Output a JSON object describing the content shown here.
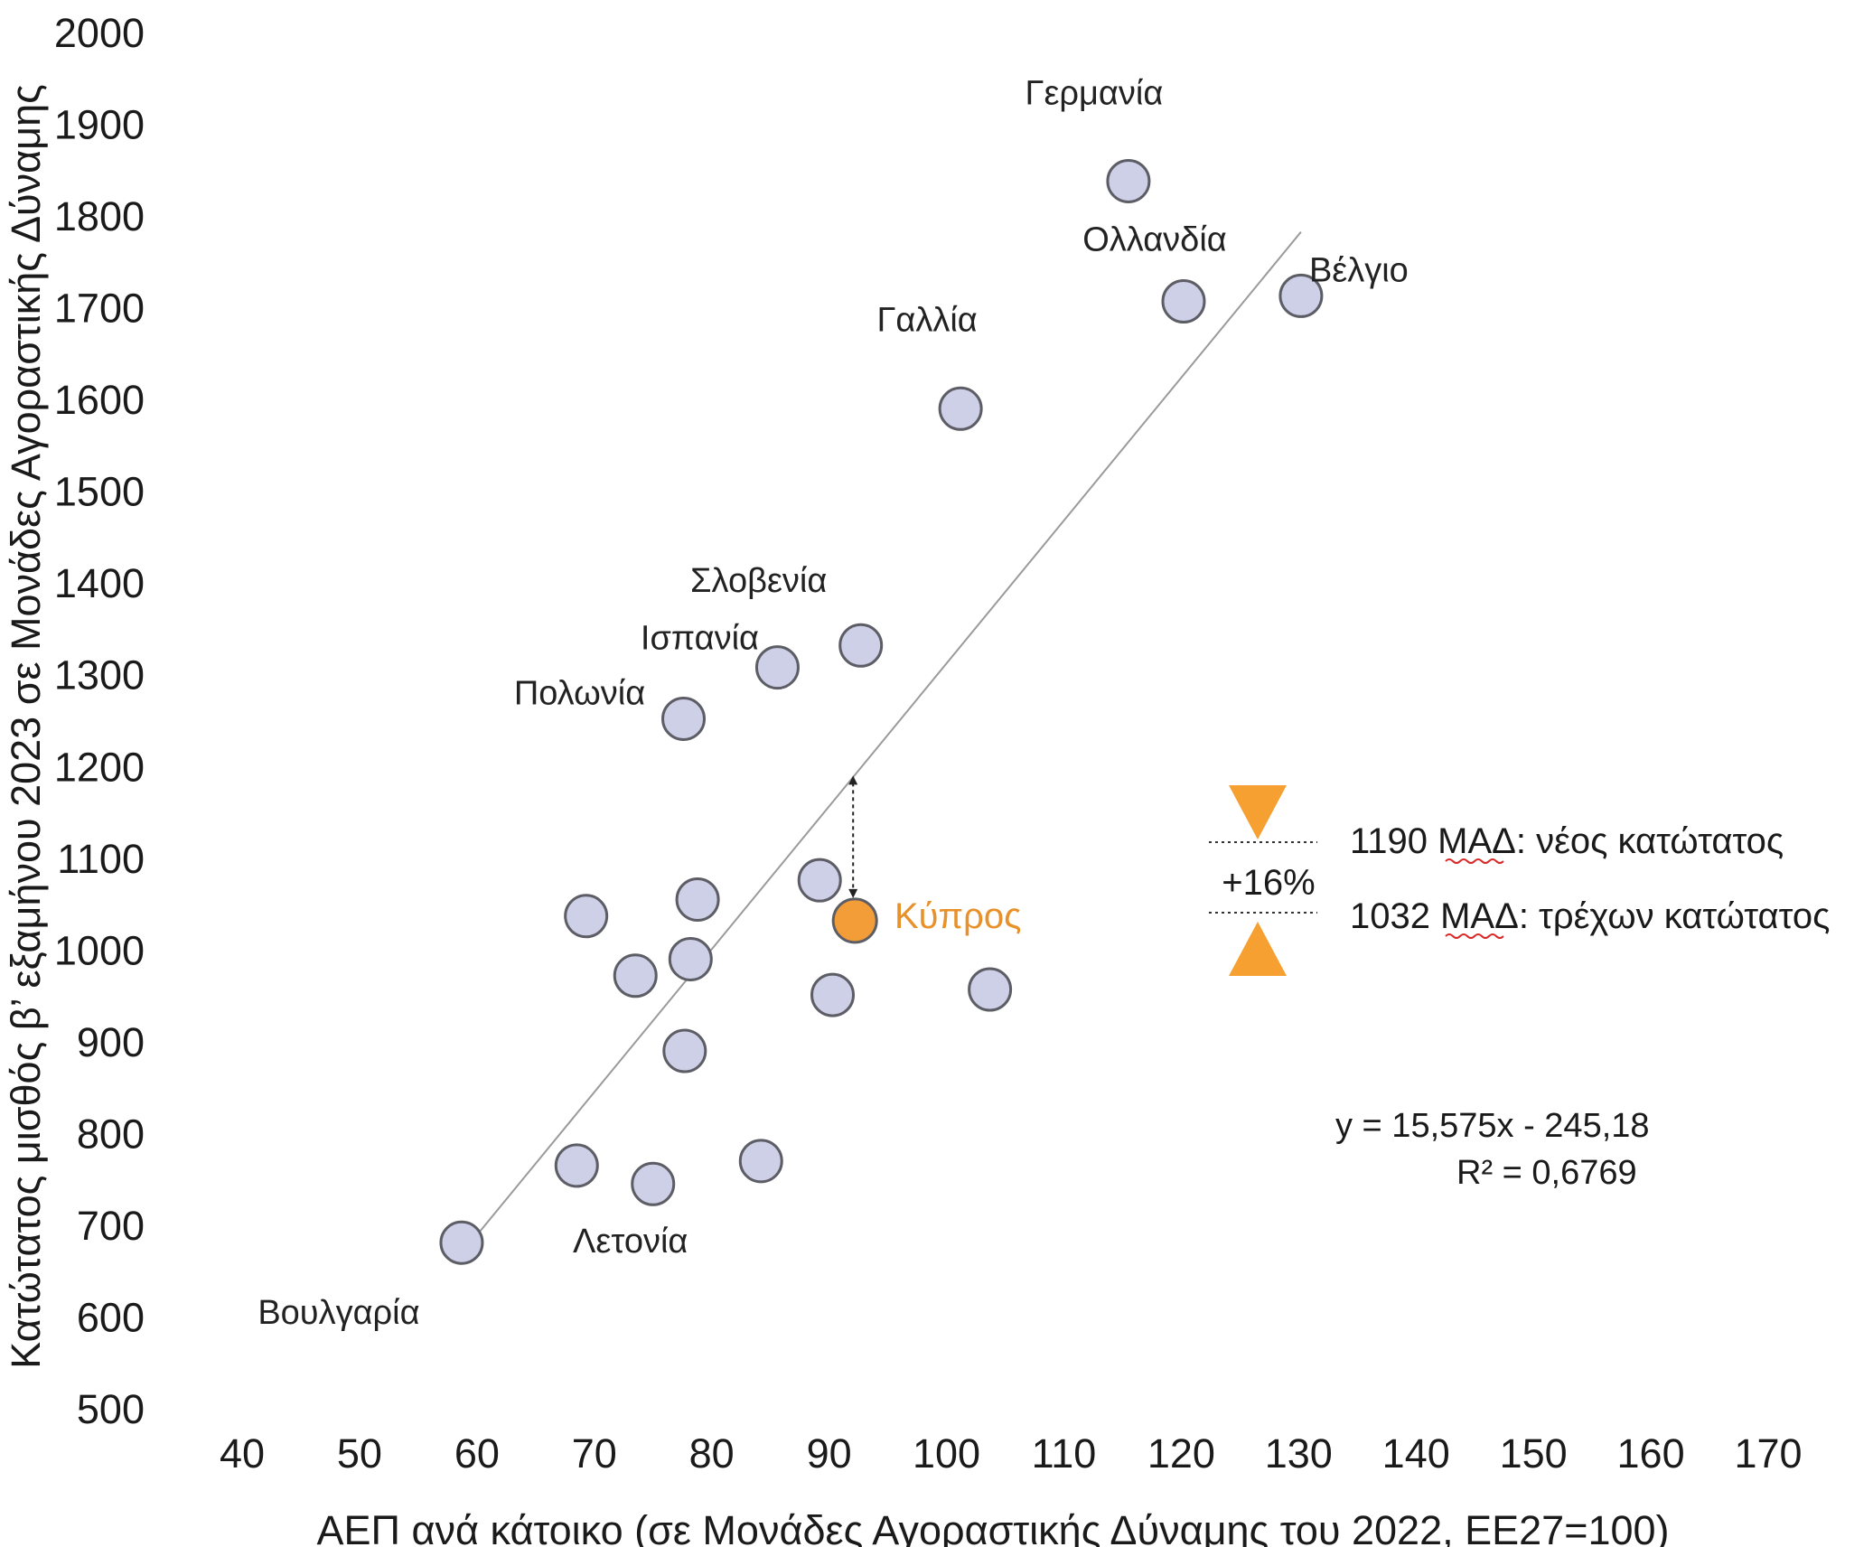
{
  "chart_data": {
    "type": "scatter",
    "xlabel": "ΑΕΠ ανά κάτοικο (σε Μονάδες Αγοραστικής Δύναμης του 2022, ΕΕ27=100)",
    "ylabel": "Κατώτατος μισθός β’ εξαμήνου 2023 σε Μονάδες Αγοραστικής Δύναμης",
    "xlim": [
      40,
      170
    ],
    "ylim": [
      500,
      2000
    ],
    "x_ticks": [
      "40",
      "50",
      "60",
      "70",
      "80",
      "90",
      "100",
      "110",
      "120",
      "130",
      "140",
      "150",
      "160",
      "170"
    ],
    "y_ticks": [
      "500",
      "600",
      "700",
      "800",
      "900",
      "1000",
      "1100",
      "1200",
      "1300",
      "1400",
      "1500",
      "1600",
      "1700",
      "1800",
      "1900",
      "2000"
    ],
    "grid": false,
    "points": [
      {
        "x": 115.5,
        "y": 1838,
        "label": "Γερμανία"
      },
      {
        "x": 120.2,
        "y": 1707,
        "label": "Ολλανδία"
      },
      {
        "x": 130.2,
        "y": 1713,
        "label": "Βέλγιο"
      },
      {
        "x": 101.2,
        "y": 1590,
        "label": "Γαλλία"
      },
      {
        "x": 92.7,
        "y": 1332,
        "label": "Σλοβενία"
      },
      {
        "x": 85.6,
        "y": 1308,
        "label": "Ισπανία"
      },
      {
        "x": 77.6,
        "y": 1252,
        "label": "Πολωνία"
      },
      {
        "x": 89.2,
        "y": 1076,
        "label": ""
      },
      {
        "x": 78.8,
        "y": 1055,
        "label": ""
      },
      {
        "x": 69.3,
        "y": 1037,
        "label": ""
      },
      {
        "x": 78.2,
        "y": 990,
        "label": ""
      },
      {
        "x": 73.5,
        "y": 972,
        "label": ""
      },
      {
        "x": 90.3,
        "y": 951,
        "label": ""
      },
      {
        "x": 103.7,
        "y": 957,
        "label": ""
      },
      {
        "x": 77.7,
        "y": 890,
        "label": ""
      },
      {
        "x": 84.2,
        "y": 770,
        "label": ""
      },
      {
        "x": 68.5,
        "y": 765,
        "label": ""
      },
      {
        "x": 75.0,
        "y": 745,
        "label": "Λετονία"
      },
      {
        "x": 58.7,
        "y": 681,
        "label": "Βουλγαρία"
      }
    ],
    "highlight": {
      "x": 92.2,
      "y": 1032,
      "label": "Κύπρος",
      "color": "#f29d38"
    },
    "trendline": {
      "slope": 15.575,
      "intercept": -245.18,
      "x_start": 59,
      "x_end": 130.2,
      "color": "#9a9a9a"
    },
    "equation": "y = 15,575x - 245,18",
    "r_squared": "R² = 0,6769",
    "gap_arrow": {
      "x": 92.2,
      "y_from": 1190,
      "y_to": 1032
    },
    "annotations": {
      "new_minimum": "1190 ΜΑΔ: νέος κατώτατος",
      "current_minimum": "1032 ΜΑΔ: τρέχων κατώτατος",
      "increase": "+16%"
    },
    "marker_fill": "#cdd0e6",
    "marker_edge": "#5d5d66",
    "triangle_color": "#f5a030"
  }
}
